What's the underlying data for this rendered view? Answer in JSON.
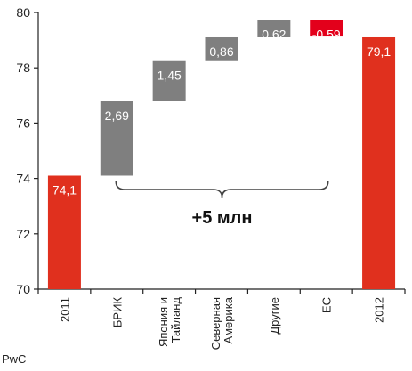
{
  "colors": {
    "total": "#E0301E",
    "increase": "#7F7F7F",
    "decrease": "#E3001B",
    "axis": "#222222",
    "bracket": "#444444"
  },
  "chart_data": {
    "type": "bar",
    "subtype": "waterfall",
    "categories": [
      "2011",
      "БРИК",
      "Япония и Тайланд",
      "Северная Америка",
      "Другие",
      "ЕС",
      "2012"
    ],
    "category_lines": [
      [
        "2011"
      ],
      [
        "БРИК"
      ],
      [
        "Япония и",
        "Тайланд"
      ],
      [
        "Северная",
        "Америка"
      ],
      [
        "Другие"
      ],
      [
        "ЕС"
      ],
      [
        "2012"
      ]
    ],
    "bars": [
      {
        "category": "2011",
        "kind": "total",
        "start": 70,
        "end": 74.1,
        "label": "74,1"
      },
      {
        "category": "БРИК",
        "kind": "increase",
        "start": 74.1,
        "end": 76.79,
        "label": "2,69"
      },
      {
        "category": "Япония и Тайланд",
        "kind": "increase",
        "start": 76.79,
        "end": 78.24,
        "label": "1,45"
      },
      {
        "category": "Северная Америка",
        "kind": "increase",
        "start": 78.24,
        "end": 79.1,
        "label": "0,86"
      },
      {
        "category": "Другие",
        "kind": "increase",
        "start": 79.1,
        "end": 79.72,
        "label": "0,62"
      },
      {
        "category": "ЕС",
        "kind": "decrease",
        "start": 79.72,
        "end": 79.13,
        "label": "-0,59"
      },
      {
        "category": "2012",
        "kind": "total",
        "start": 70,
        "end": 79.1,
        "label": "79,1"
      }
    ],
    "yticks": [
      70,
      72,
      74,
      76,
      78,
      80
    ],
    "ylim": [
      70,
      80
    ],
    "annotation": "+5 млн",
    "title": "",
    "xlabel": "",
    "ylabel": "",
    "grid": false,
    "legend": "none"
  },
  "footer": {
    "source": "PwC"
  }
}
